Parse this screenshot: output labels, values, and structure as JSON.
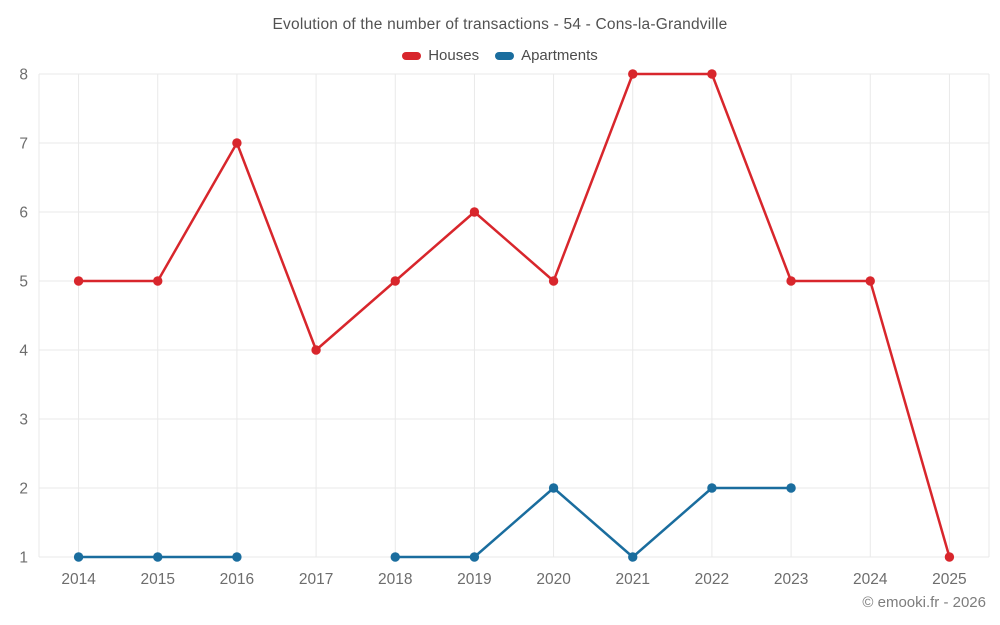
{
  "header": {
    "title": "Evolution of the number of transactions - 54 - Cons-la-Grandville"
  },
  "legend": {
    "items": [
      {
        "label": "Houses",
        "color": "#d8262c"
      },
      {
        "label": "Apartments",
        "color": "#1a6d9e"
      }
    ]
  },
  "footer": {
    "copyright": "© emooki.fr - 2026"
  },
  "colors": {
    "grid": "#e9e9e9",
    "tick_label": "#6d6d6d",
    "background": "#ffffff"
  },
  "chart_data": {
    "type": "line",
    "title": "Evolution of the number of transactions - 54 - Cons-la-Grandville",
    "categories": [
      "2014",
      "2015",
      "2016",
      "2017",
      "2018",
      "2019",
      "2020",
      "2021",
      "2022",
      "2023",
      "2024",
      "2025"
    ],
    "series": [
      {
        "name": "Houses",
        "color": "#d8262c",
        "values": [
          5,
          5,
          7,
          4,
          5,
          6,
          5,
          8,
          8,
          5,
          5,
          1
        ]
      },
      {
        "name": "Apartments",
        "color": "#1a6d9e",
        "values": [
          1,
          1,
          1,
          null,
          1,
          1,
          2,
          1,
          2,
          2,
          null,
          null
        ]
      }
    ],
    "xlabel": "",
    "ylabel": "",
    "ylim": [
      1,
      8
    ],
    "yticks": [
      1,
      2,
      3,
      4,
      5,
      6,
      7,
      8
    ],
    "grid": true,
    "legend_position": "top"
  }
}
